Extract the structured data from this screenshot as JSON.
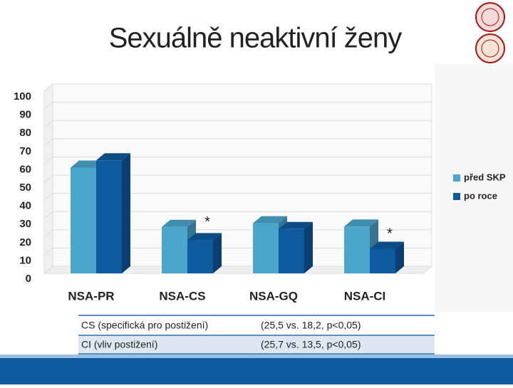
{
  "chart_data": {
    "type": "bar3d",
    "title": "Sexuálně neaktivní ženy",
    "categories": [
      "NSA-PR",
      "NSA-CS",
      "NSA-GQ",
      "NSA-CI"
    ],
    "series": [
      {
        "name": "před SKP",
        "color": "#4ba6cb",
        "values": [
          58,
          25.5,
          27.5,
          25.7
        ]
      },
      {
        "name": "po roce",
        "color": "#0e5a9e",
        "values": [
          62,
          18.2,
          24.3,
          13.5
        ]
      }
    ],
    "ylim": [
      0,
      100
    ],
    "yticks": [
      0,
      10,
      20,
      30,
      40,
      50,
      60,
      70,
      80,
      90,
      100
    ],
    "grid": true,
    "legend": "right",
    "annotations": [
      "*",
      "*"
    ]
  },
  "table": {
    "rows": [
      [
        "CS (specifická pro postižení)",
        "(25,5 vs. 18,2, p<0,05)"
      ],
      [
        "CI (vliv postižení)",
        "(25,7 vs. 13,5, p<0,05)"
      ]
    ]
  }
}
